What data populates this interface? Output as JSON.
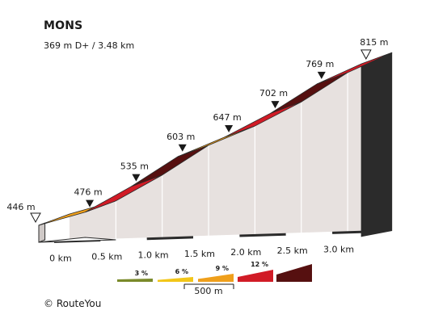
{
  "title": "MONS",
  "subtitle": "369 m D+ / 3.48 km",
  "credit": "©  RouteYou",
  "colors": {
    "grade_3": "#7a8a2a",
    "grade_6": "#f2c618",
    "grade_9": "#ef9f1b",
    "grade_12": "#d11b26",
    "grade_max": "#561010",
    "side_face": "#e7e1df",
    "base_strip": "#2b2b2b",
    "grid": "#ffffff"
  },
  "legend": {
    "items": [
      {
        "label": "3 %",
        "color": "#7a8a2a"
      },
      {
        "label": "6 %",
        "color": "#f2c618"
      },
      {
        "label": "9 %",
        "color": "#ef9f1b"
      },
      {
        "label": "12 %",
        "color": "#d11b26"
      },
      {
        "label": "",
        "color": "#561010"
      }
    ],
    "scale_label": "500 m"
  },
  "chart_data": {
    "type": "area",
    "title": "MONS",
    "subtitle": "369 m D+ / 3.48 km",
    "xlabel": "",
    "ylabel": "",
    "x_unit": "km",
    "y_unit": "m",
    "x_ticks": [
      "0 km",
      "0.5 km",
      "1.0 km",
      "1.5 km",
      "2.0 km",
      "2.5 km",
      "3.0 km"
    ],
    "x_tick_values": [
      0,
      0.5,
      1.0,
      1.5,
      2.0,
      2.5,
      3.0
    ],
    "xlim": [
      0,
      3.48
    ],
    "ylim": [
      446,
      815
    ],
    "points": [
      {
        "x": 0,
        "y": 446,
        "label": "446 m",
        "marker": "start"
      },
      {
        "x": 0.5,
        "y": 476,
        "label": "476 m",
        "marker": "arrow"
      },
      {
        "x": 1.0,
        "y": 535,
        "label": "535 m",
        "marker": "arrow"
      },
      {
        "x": 1.5,
        "y": 603,
        "label": "603 m",
        "marker": "arrow"
      },
      {
        "x": 2.0,
        "y": 647,
        "label": "647 m",
        "marker": "arrow"
      },
      {
        "x": 2.5,
        "y": 702,
        "label": "702 m",
        "marker": "arrow"
      },
      {
        "x": 3.0,
        "y": 769,
        "label": "769 m",
        "marker": "arrow"
      },
      {
        "x": 3.48,
        "y": 815,
        "label": "815 m",
        "marker": "end"
      }
    ],
    "segment_colors": [
      "#ef9f1b",
      "#d11b26",
      "#561010",
      "#ef9f1b",
      "#d11b26",
      "#561010",
      "#d11b26"
    ],
    "grid": true
  }
}
